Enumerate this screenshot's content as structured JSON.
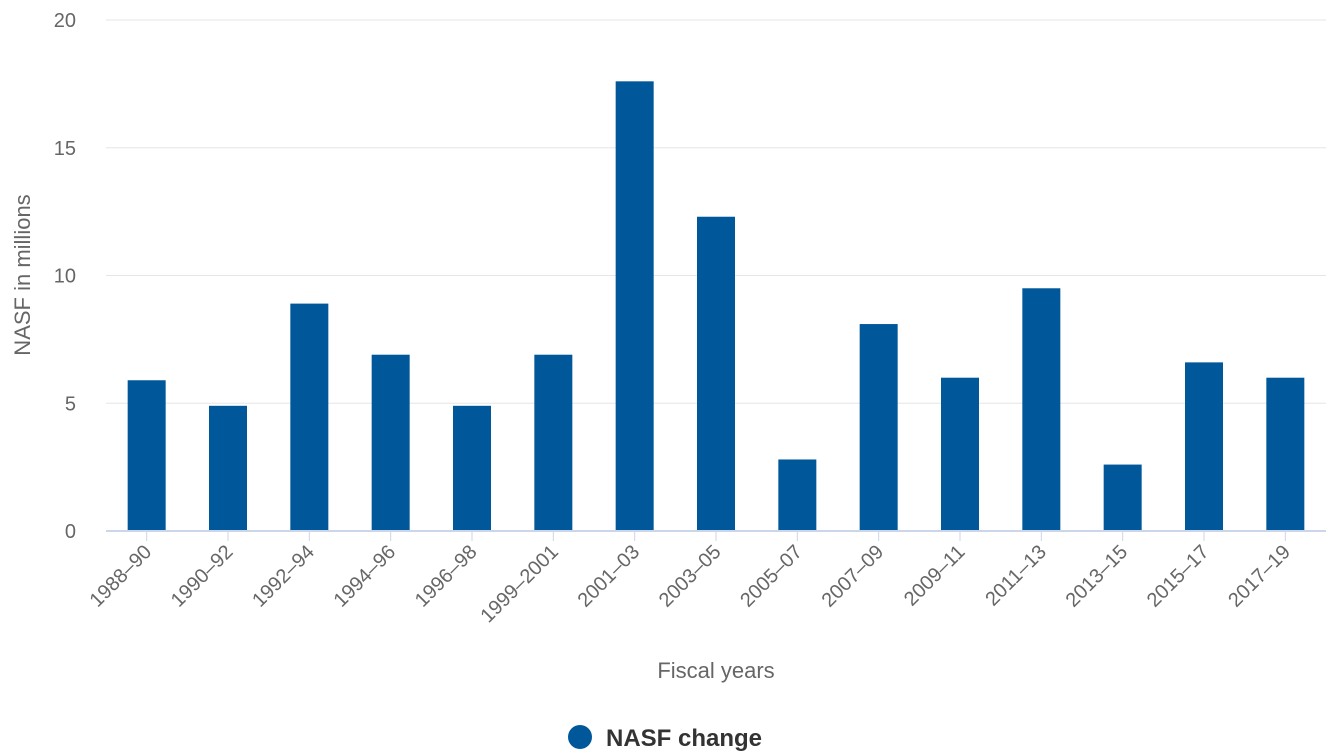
{
  "chart_data": {
    "type": "bar",
    "categories": [
      "1988–90",
      "1990–92",
      "1992–94",
      "1994–96",
      "1996–98",
      "1999–2001",
      "2001–03",
      "2003–05",
      "2005–07",
      "2007–09",
      "2009–11",
      "2011–13",
      "2013–15",
      "2015–17",
      "2017–19"
    ],
    "series": [
      {
        "name": "NASF change",
        "values": [
          5.9,
          4.9,
          8.9,
          6.9,
          4.9,
          6.9,
          17.6,
          12.3,
          2.8,
          8.1,
          6.0,
          9.5,
          2.6,
          6.6,
          6.0
        ]
      }
    ],
    "title": "",
    "xlabel": "Fiscal years",
    "ylabel": "NASF in millions",
    "ylim": [
      0,
      20
    ],
    "yticks": [
      "0",
      "5",
      "10",
      "15",
      "20"
    ],
    "grid": true,
    "legend": "bottom-center",
    "colors": {
      "bar": "#00589b",
      "grid": "#e6e6e6",
      "axis": "#ccd6eb",
      "text": "#666666"
    }
  }
}
